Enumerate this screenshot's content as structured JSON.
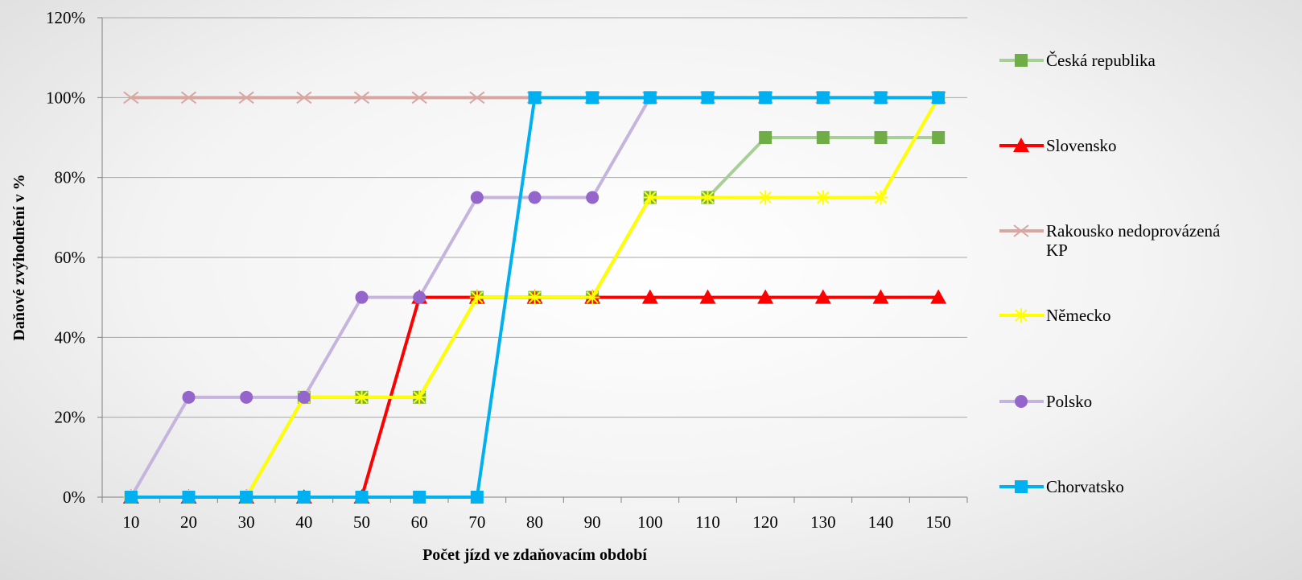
{
  "chart_data": {
    "type": "line",
    "xlabel": "Počet jízd ve zdaňovacím období",
    "ylabel": "Daňové zvýhodnění v %",
    "x": [
      10,
      20,
      30,
      40,
      50,
      60,
      70,
      80,
      90,
      100,
      110,
      120,
      130,
      140,
      150
    ],
    "ylim": [
      0,
      120
    ],
    "y_ticks": [
      "0%",
      "20%",
      "40%",
      "60%",
      "80%",
      "100%",
      "120%"
    ],
    "grid": "horizontal",
    "legend_position": "right",
    "series": [
      {
        "name": "Česká republika",
        "color": "#a9cf98",
        "marker": "square",
        "marker_color": "#70ad47",
        "values": [
          0,
          0,
          0,
          25,
          25,
          25,
          50,
          50,
          50,
          75,
          75,
          90,
          90,
          90,
          90
        ]
      },
      {
        "name": "Slovensko",
        "color": "#ff0000",
        "marker": "triangle",
        "marker_color": "#ff0000",
        "values": [
          0,
          0,
          0,
          0,
          0,
          50,
          50,
          50,
          50,
          50,
          50,
          50,
          50,
          50,
          50
        ]
      },
      {
        "name": "Rakousko nedoprovázená KP",
        "color": "#d9a7a2",
        "marker": "x",
        "marker_color": "#d9a7a2",
        "values": [
          100,
          100,
          100,
          100,
          100,
          100,
          100,
          100,
          100,
          100,
          100,
          100,
          100,
          100,
          100
        ]
      },
      {
        "name": "Německo",
        "color": "#ffff00",
        "marker": "star",
        "marker_color": "#ffff00",
        "values": [
          0,
          0,
          0,
          25,
          25,
          25,
          50,
          50,
          50,
          75,
          75,
          75,
          75,
          75,
          100
        ]
      },
      {
        "name": "Polsko",
        "color": "#c5b4dc",
        "marker": "circle",
        "marker_color": "#9466cc",
        "values": [
          0,
          25,
          25,
          25,
          50,
          50,
          75,
          75,
          75,
          100,
          100,
          100,
          100,
          100,
          100
        ]
      },
      {
        "name": "Chorvatsko",
        "color": "#00b0f0",
        "marker": "square",
        "marker_color": "#00b0f0",
        "values": [
          0,
          0,
          0,
          0,
          0,
          0,
          0,
          100,
          100,
          100,
          100,
          100,
          100,
          100,
          100
        ]
      }
    ]
  }
}
